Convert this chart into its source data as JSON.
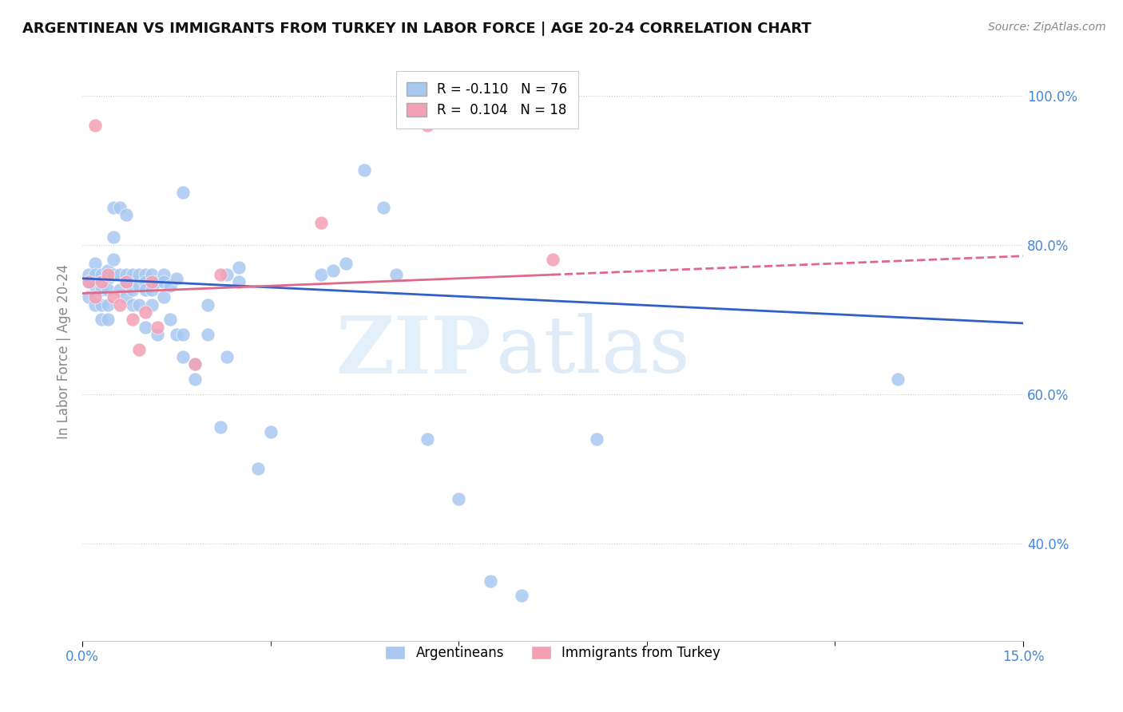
{
  "title": "ARGENTINEAN VS IMMIGRANTS FROM TURKEY IN LABOR FORCE | AGE 20-24 CORRELATION CHART",
  "source": "Source: ZipAtlas.com",
  "ylabel_label": "In Labor Force | Age 20-24",
  "xmin": 0.0,
  "xmax": 0.15,
  "ymin": 0.27,
  "ymax": 1.045,
  "yticks": [
    0.4,
    0.6,
    0.8,
    1.0
  ],
  "ytick_labels": [
    "40.0%",
    "60.0%",
    "80.0%",
    "100.0%"
  ],
  "blue_R": -0.11,
  "blue_N": 76,
  "pink_R": 0.104,
  "pink_N": 18,
  "blue_color": "#a8c8f0",
  "pink_color": "#f4a0b4",
  "blue_line_color": "#3060c8",
  "pink_line_color": "#e06888",
  "watermark_zip": "ZIP",
  "watermark_atlas": "atlas",
  "blue_line_x0": 0.0,
  "blue_line_y0": 0.755,
  "blue_line_x1": 0.15,
  "blue_line_y1": 0.695,
  "pink_line_x0": 0.0,
  "pink_line_y0": 0.735,
  "pink_line_x1": 0.15,
  "pink_line_y1": 0.785,
  "blue_scatter_x": [
    0.001,
    0.001,
    0.001,
    0.002,
    0.002,
    0.002,
    0.002,
    0.003,
    0.003,
    0.003,
    0.003,
    0.003,
    0.004,
    0.004,
    0.004,
    0.004,
    0.004,
    0.005,
    0.005,
    0.005,
    0.005,
    0.006,
    0.006,
    0.006,
    0.007,
    0.007,
    0.007,
    0.007,
    0.008,
    0.008,
    0.008,
    0.009,
    0.009,
    0.009,
    0.01,
    0.01,
    0.01,
    0.01,
    0.011,
    0.011,
    0.011,
    0.012,
    0.012,
    0.013,
    0.013,
    0.013,
    0.014,
    0.014,
    0.015,
    0.015,
    0.016,
    0.016,
    0.016,
    0.018,
    0.018,
    0.02,
    0.02,
    0.022,
    0.023,
    0.023,
    0.025,
    0.025,
    0.028,
    0.03,
    0.038,
    0.04,
    0.042,
    0.045,
    0.048,
    0.05,
    0.055,
    0.06,
    0.065,
    0.07,
    0.082,
    0.13
  ],
  "blue_scatter_y": [
    0.76,
    0.75,
    0.73,
    0.775,
    0.76,
    0.745,
    0.72,
    0.76,
    0.75,
    0.74,
    0.72,
    0.7,
    0.765,
    0.755,
    0.74,
    0.72,
    0.7,
    0.85,
    0.81,
    0.78,
    0.76,
    0.85,
    0.76,
    0.74,
    0.84,
    0.76,
    0.75,
    0.73,
    0.76,
    0.74,
    0.72,
    0.76,
    0.745,
    0.72,
    0.76,
    0.75,
    0.74,
    0.69,
    0.76,
    0.74,
    0.72,
    0.75,
    0.68,
    0.76,
    0.75,
    0.73,
    0.745,
    0.7,
    0.755,
    0.68,
    0.87,
    0.68,
    0.65,
    0.64,
    0.62,
    0.72,
    0.68,
    0.556,
    0.76,
    0.65,
    0.77,
    0.75,
    0.5,
    0.55,
    0.76,
    0.765,
    0.775,
    0.9,
    0.85,
    0.76,
    0.54,
    0.46,
    0.35,
    0.33,
    0.54,
    0.62
  ],
  "pink_scatter_x": [
    0.001,
    0.002,
    0.002,
    0.003,
    0.004,
    0.005,
    0.006,
    0.007,
    0.008,
    0.009,
    0.01,
    0.011,
    0.012,
    0.018,
    0.022,
    0.038,
    0.055,
    0.075
  ],
  "pink_scatter_y": [
    0.75,
    0.96,
    0.73,
    0.75,
    0.76,
    0.73,
    0.72,
    0.75,
    0.7,
    0.66,
    0.71,
    0.75,
    0.69,
    0.64,
    0.76,
    0.83,
    0.96,
    0.78
  ]
}
